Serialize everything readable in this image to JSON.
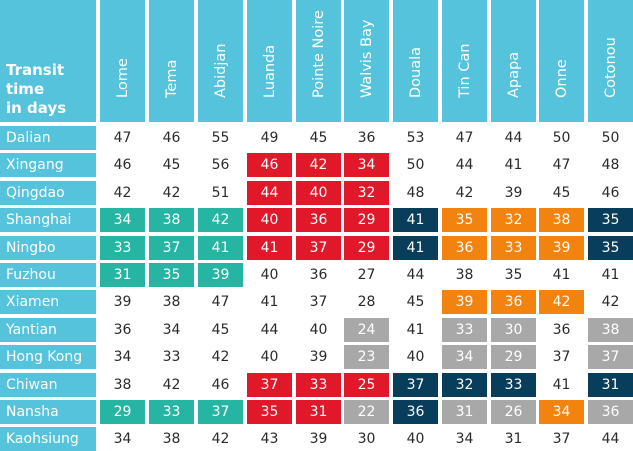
{
  "corner_label": [
    "Transit",
    "time",
    "in days"
  ],
  "ports": [
    "Lome",
    "Tema",
    "Abidjan",
    "Luanda",
    "Pointe Noire",
    "Walvis Bay",
    "Douala",
    "Tin Can",
    "Apapa",
    "Onne",
    "Cotonou"
  ],
  "palette": {
    "teal": "#26b5a3",
    "red": "#e0182a",
    "navy": "#083d5c",
    "orange": "#f2830e",
    "gray": "#a8a8a8",
    "header": "#56c3dc"
  },
  "rows": [
    {
      "origin": "Dalian",
      "values": [
        47,
        46,
        55,
        49,
        45,
        36,
        53,
        47,
        44,
        50,
        50
      ],
      "colors": [
        "",
        "",
        "",
        "",
        "",
        "",
        "",
        "",
        "",
        "",
        ""
      ]
    },
    {
      "origin": "Xingang",
      "values": [
        46,
        45,
        56,
        46,
        42,
        34,
        50,
        44,
        41,
        47,
        48
      ],
      "colors": [
        "",
        "",
        "",
        "red",
        "red",
        "red",
        "",
        "",
        "",
        "",
        ""
      ]
    },
    {
      "origin": "Qingdao",
      "values": [
        42,
        42,
        51,
        44,
        40,
        32,
        48,
        42,
        39,
        45,
        46
      ],
      "colors": [
        "",
        "",
        "",
        "red",
        "red",
        "red",
        "",
        "",
        "",
        "",
        ""
      ]
    },
    {
      "origin": "Shanghai",
      "values": [
        34,
        38,
        42,
        40,
        36,
        29,
        41,
        35,
        32,
        38,
        35
      ],
      "colors": [
        "teal",
        "teal",
        "teal",
        "red",
        "red",
        "red",
        "navy",
        "orange",
        "orange",
        "orange",
        "navy"
      ]
    },
    {
      "origin": "Ningbo",
      "values": [
        33,
        37,
        41,
        41,
        37,
        29,
        41,
        36,
        33,
        39,
        35
      ],
      "colors": [
        "teal",
        "teal",
        "teal",
        "red",
        "red",
        "red",
        "navy",
        "orange",
        "orange",
        "orange",
        "navy"
      ]
    },
    {
      "origin": "Fuzhou",
      "values": [
        31,
        35,
        39,
        40,
        36,
        27,
        44,
        38,
        35,
        41,
        41
      ],
      "colors": [
        "teal",
        "teal",
        "teal",
        "",
        "",
        "",
        "",
        "",
        "",
        "",
        ""
      ]
    },
    {
      "origin": "Xiamen",
      "values": [
        39,
        38,
        47,
        41,
        37,
        28,
        45,
        39,
        36,
        42,
        42
      ],
      "colors": [
        "",
        "",
        "",
        "",
        "",
        "",
        "",
        "orange",
        "orange",
        "orange",
        ""
      ]
    },
    {
      "origin": "Yantian",
      "values": [
        36,
        34,
        45,
        44,
        40,
        24,
        41,
        33,
        30,
        36,
        38
      ],
      "colors": [
        "",
        "",
        "",
        "",
        "",
        "gray",
        "",
        "gray",
        "gray",
        "",
        "gray"
      ]
    },
    {
      "origin": "Hong Kong",
      "values": [
        34,
        33,
        42,
        40,
        39,
        23,
        40,
        34,
        29,
        37,
        37
      ],
      "colors": [
        "",
        "",
        "",
        "",
        "",
        "gray",
        "",
        "gray",
        "gray",
        "",
        "gray"
      ]
    },
    {
      "origin": "Chiwan",
      "values": [
        38,
        42,
        46,
        37,
        33,
        25,
        37,
        32,
        33,
        41,
        31
      ],
      "colors": [
        "",
        "",
        "",
        "red",
        "red",
        "red",
        "navy",
        "navy",
        "navy",
        "",
        "navy"
      ]
    },
    {
      "origin": "Nansha",
      "values": [
        29,
        33,
        37,
        35,
        31,
        22,
        36,
        31,
        26,
        34,
        36
      ],
      "colors": [
        "teal",
        "teal",
        "teal",
        "red",
        "red",
        "gray",
        "navy",
        "gray",
        "gray",
        "orange",
        "gray"
      ]
    },
    {
      "origin": "Kaohsiung",
      "values": [
        34,
        38,
        42,
        43,
        39,
        30,
        40,
        34,
        31,
        37,
        44
      ],
      "colors": [
        "",
        "",
        "",
        "",
        "",
        "",
        "",
        "",
        "",
        "",
        ""
      ]
    }
  ]
}
